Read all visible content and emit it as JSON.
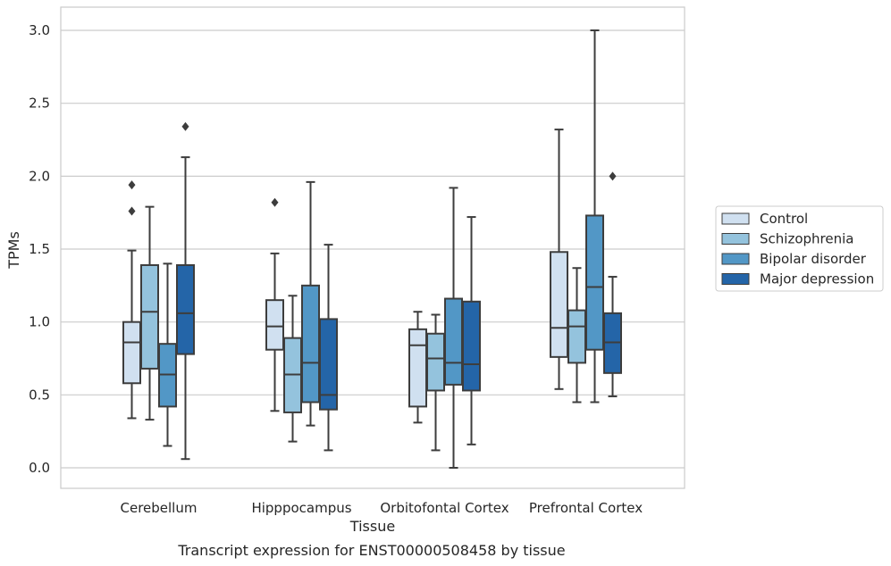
{
  "caption": "Transcript expression for ENST00000508458 by tissue",
  "chart_data": {
    "type": "boxplot",
    "title": "",
    "xlabel": "Tissue",
    "ylabel": "TPMs",
    "ylim": [
      -0.15,
      3.15
    ],
    "yticks": [
      0.0,
      0.5,
      1.0,
      1.5,
      2.0,
      2.5,
      3.0
    ],
    "ytick_labels": [
      "0.0",
      "0.5",
      "1.0",
      "1.5",
      "2.0",
      "2.5",
      "3.0"
    ],
    "grid": "horizontal",
    "legend_position": "right",
    "categories": [
      "Cerebellum",
      "Hipppocampus",
      "Orbitofontal Cortex",
      "Prefrontal Cortex"
    ],
    "series": [
      {
        "name": "Control",
        "color": "#d0e0f0",
        "boxes": [
          {
            "whislo": 0.34,
            "q1": 0.58,
            "med": 0.86,
            "q3": 1.0,
            "whishi": 1.49,
            "fliers": [
              1.94,
              1.76
            ]
          },
          {
            "whislo": 0.39,
            "q1": 0.81,
            "med": 0.97,
            "q3": 1.15,
            "whishi": 1.47,
            "fliers": [
              1.82
            ]
          },
          {
            "whislo": 0.31,
            "q1": 0.42,
            "med": 0.84,
            "q3": 0.95,
            "whishi": 1.07,
            "fliers": []
          },
          {
            "whislo": 0.54,
            "q1": 0.76,
            "med": 0.96,
            "q3": 1.48,
            "whishi": 2.32,
            "fliers": []
          }
        ]
      },
      {
        "name": "Schizophrenia",
        "color": "#94c3dd",
        "boxes": [
          {
            "whislo": 0.33,
            "q1": 0.68,
            "med": 1.07,
            "q3": 1.39,
            "whishi": 1.79,
            "fliers": []
          },
          {
            "whislo": 0.18,
            "q1": 0.38,
            "med": 0.64,
            "q3": 0.89,
            "whishi": 1.18,
            "fliers": []
          },
          {
            "whislo": 0.12,
            "q1": 0.53,
            "med": 0.75,
            "q3": 0.92,
            "whishi": 1.05,
            "fliers": []
          },
          {
            "whislo": 0.45,
            "q1": 0.72,
            "med": 0.97,
            "q3": 1.08,
            "whishi": 1.37,
            "fliers": []
          }
        ]
      },
      {
        "name": "Bipolar disorder",
        "color": "#5297c6",
        "boxes": [
          {
            "whislo": 0.15,
            "q1": 0.42,
            "med": 0.64,
            "q3": 0.85,
            "whishi": 1.4,
            "fliers": []
          },
          {
            "whislo": 0.29,
            "q1": 0.45,
            "med": 0.72,
            "q3": 1.25,
            "whishi": 1.96,
            "fliers": []
          },
          {
            "whislo": 0.0,
            "q1": 0.57,
            "med": 0.72,
            "q3": 1.16,
            "whishi": 1.92,
            "fliers": []
          },
          {
            "whislo": 0.45,
            "q1": 0.81,
            "med": 1.24,
            "q3": 1.73,
            "whishi": 3.0,
            "fliers": []
          }
        ]
      },
      {
        "name": "Major depression",
        "color": "#2465a8",
        "boxes": [
          {
            "whislo": 0.06,
            "q1": 0.78,
            "med": 1.06,
            "q3": 1.39,
            "whishi": 2.13,
            "fliers": [
              2.34
            ]
          },
          {
            "whislo": 0.12,
            "q1": 0.4,
            "med": 0.5,
            "q3": 1.02,
            "whishi": 1.53,
            "fliers": []
          },
          {
            "whislo": 0.16,
            "q1": 0.53,
            "med": 0.71,
            "q3": 1.14,
            "whishi": 1.72,
            "fliers": []
          },
          {
            "whislo": 0.49,
            "q1": 0.65,
            "med": 0.86,
            "q3": 1.06,
            "whishi": 1.31,
            "fliers": [
              2.0
            ]
          }
        ]
      }
    ]
  }
}
